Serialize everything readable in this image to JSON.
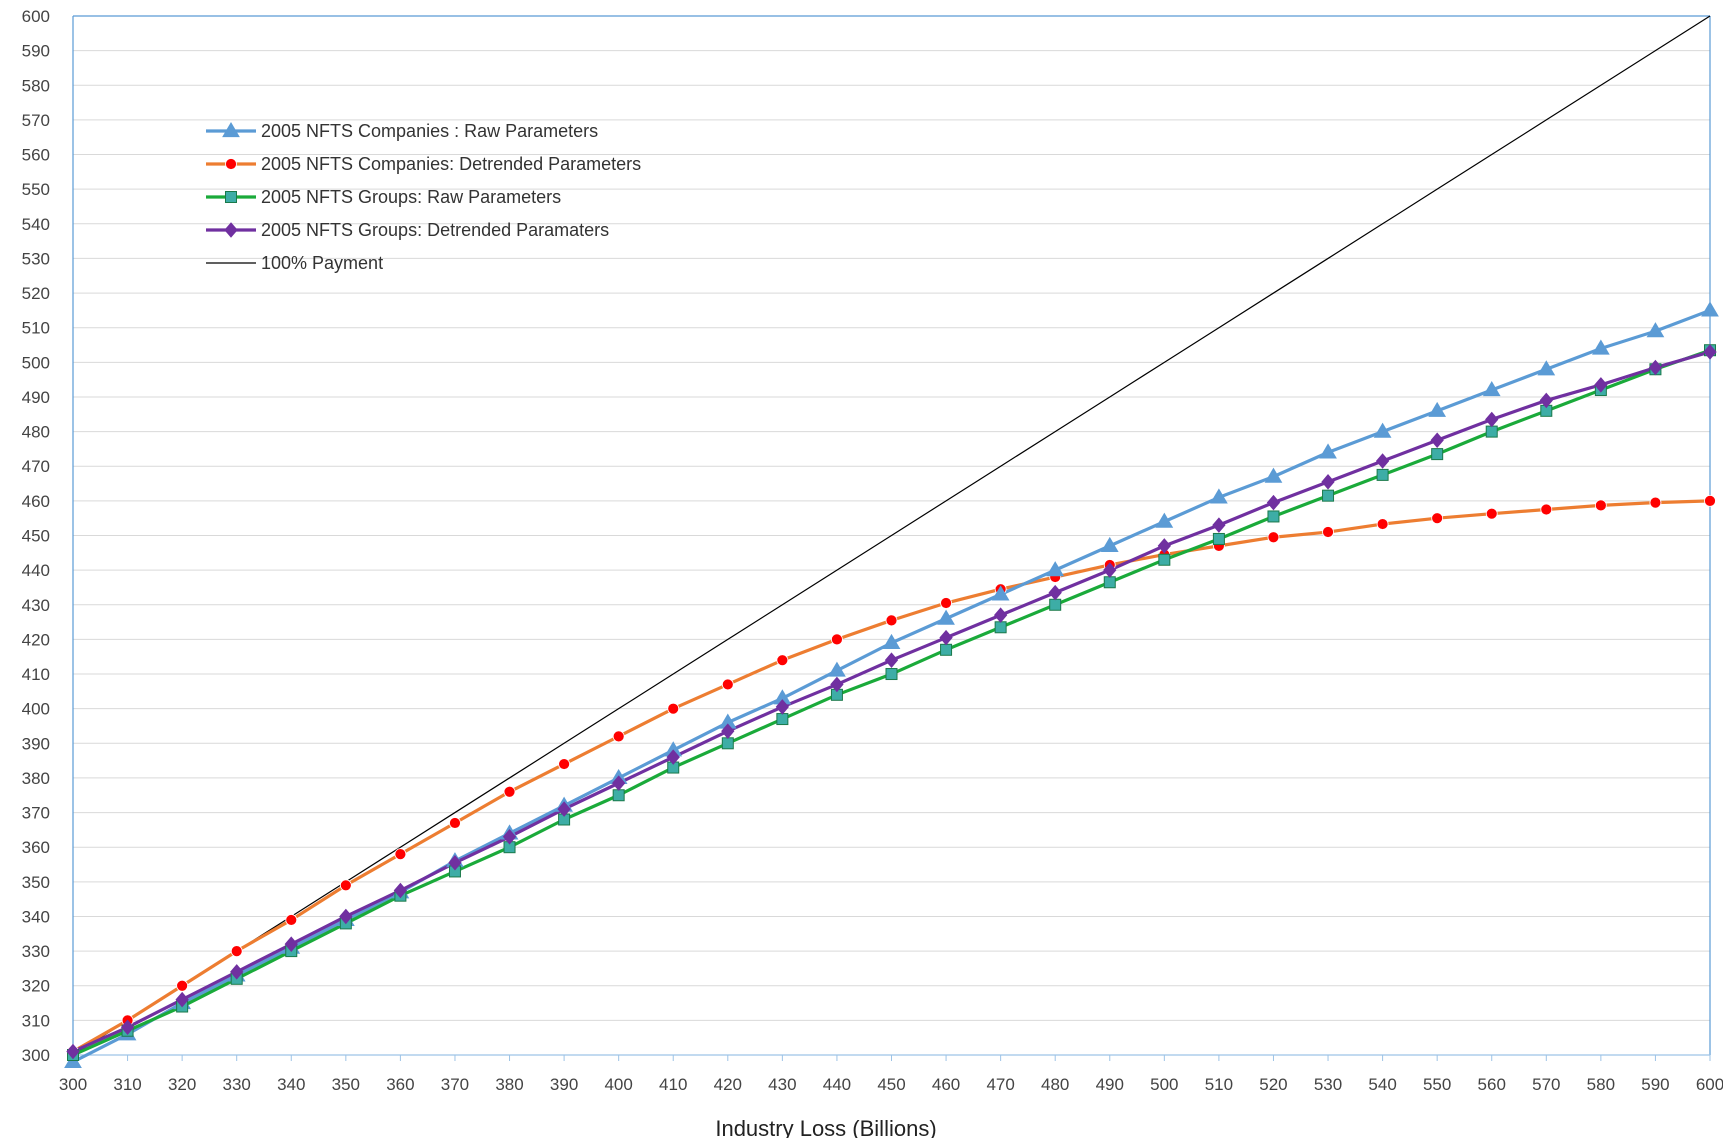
{
  "chart_data": {
    "type": "line",
    "title": "",
    "xlabel": "Industry  Loss (Billions)",
    "ylabel": "",
    "xlim": [
      300,
      600
    ],
    "ylim": [
      300,
      600
    ],
    "x_tick_step": 10,
    "y_tick_step": 10,
    "grid": "horizontal",
    "legend_position": "top-left",
    "x": [
      300,
      310,
      320,
      330,
      340,
      350,
      360,
      370,
      380,
      390,
      400,
      410,
      420,
      430,
      440,
      450,
      460,
      470,
      480,
      490,
      500,
      510,
      520,
      530,
      540,
      550,
      560,
      570,
      580,
      590,
      600
    ],
    "series": [
      {
        "name": "2005 NFTS Companies : Raw Parameters",
        "color": "#5B9BD5",
        "marker": "triangle",
        "values": [
          298,
          306,
          315,
          323,
          331,
          339,
          347,
          356,
          364,
          372,
          380,
          388,
          396,
          403,
          411,
          419,
          426,
          433,
          440,
          447,
          454,
          461,
          467,
          474,
          480,
          486,
          492,
          498,
          504,
          509,
          515
        ]
      },
      {
        "name": "2005 NFTS Companies: Detrended Parameters",
        "color": "#ED7D31",
        "marker_color": "#FF0000",
        "marker": "circle",
        "values": [
          301,
          310,
          320,
          330,
          339,
          349,
          358,
          367,
          376,
          384,
          392,
          400,
          407,
          414,
          420,
          425.5,
          430.5,
          434.5,
          438,
          441.5,
          444.5,
          447,
          449.5,
          451,
          453.3,
          455,
          456.3,
          457.5,
          458.7,
          459.5,
          460
        ]
      },
      {
        "name": "2005 NFTS Groups: Raw Parameters",
        "color": "#1AAA3A",
        "marker_color": "#3DADA6",
        "marker": "square",
        "values": [
          300,
          307,
          314,
          322,
          330,
          338,
          346,
          353,
          360,
          368,
          375,
          383,
          390,
          397,
          404,
          410,
          417,
          423.5,
          430,
          436.5,
          443,
          449,
          455.5,
          461.5,
          467.5,
          473.5,
          480,
          486,
          492,
          498,
          503.5
        ]
      },
      {
        "name": "2005 NFTS Groups: Detrended Paramaters",
        "color": "#7030A0",
        "marker": "diamond",
        "values": [
          301,
          308,
          316,
          324,
          332,
          340,
          347.5,
          355.5,
          363,
          371,
          378.5,
          386,
          393.5,
          400.5,
          407,
          414,
          420.5,
          427,
          433.5,
          440,
          447,
          453,
          459.5,
          465.5,
          471.5,
          477.5,
          483.5,
          489,
          493.5,
          498.5,
          503
        ]
      },
      {
        "name": "100% Payment",
        "color": "#000000",
        "marker": "none",
        "values": [
          300,
          310,
          320,
          330,
          340,
          350,
          360,
          370,
          380,
          390,
          400,
          410,
          420,
          430,
          440,
          450,
          460,
          470,
          480,
          490,
          500,
          510,
          520,
          530,
          540,
          550,
          560,
          570,
          580,
          590,
          600
        ]
      }
    ]
  }
}
